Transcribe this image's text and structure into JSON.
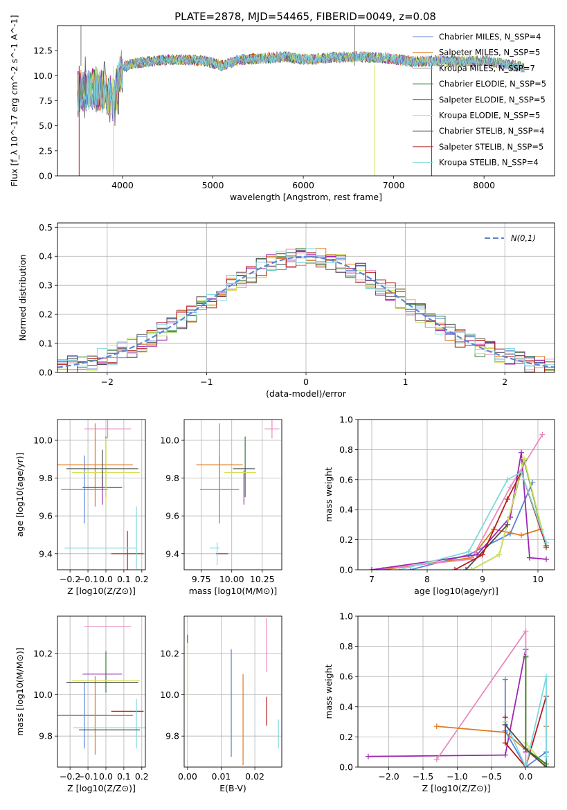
{
  "figure_title": "PLATE=2878, MJD=54465, FIBERID=0049, z=0.08",
  "colors": {
    "chabrier_miles": "#5b84d6",
    "salpeter_miles": "#e07a1f",
    "kroupa_miles": "#9aa3a8",
    "chabrier_elodie": "#2e7d32",
    "salpeter_elodie": "#9c27b0",
    "kroupa_elodie": "#d4e157",
    "chabrier_stelib": "#4d4d4d",
    "salpeter_stelib": "#b71c1c",
    "kroupa_stelib": "#7fd8de",
    "pink": "#e98ac0",
    "normal_curve": "#5b84d6"
  },
  "chart_data": [
    {
      "id": "spectrum",
      "type": "line",
      "xlabel": "wavelength [Angstrom, rest frame]",
      "ylabel": "Flux [f_λ 10^-17 erg cm^-2 s^-1 A^-1]",
      "xlim": [
        3280,
        8780
      ],
      "ylim": [
        0,
        15
      ],
      "xticks": [
        4000,
        5000,
        6000,
        7000,
        8000
      ],
      "yticks": [
        0.0,
        2.5,
        5.0,
        7.5,
        10.0,
        12.5
      ],
      "grid": false,
      "legend_position": "right",
      "series": [
        {
          "name": "Chabrier MILES, N_SSP=4",
          "color_key": "chabrier_miles"
        },
        {
          "name": "Salpeter MILES, N_SSP=5",
          "color_key": "salpeter_miles"
        },
        {
          "name": "Kroupa MILES, N_SSP=7",
          "color_key": "kroupa_miles"
        },
        {
          "name": "Chabrier ELODIE, N_SSP=5",
          "color_key": "chabrier_elodie"
        },
        {
          "name": "Salpeter ELODIE, N_SSP=5",
          "color_key": "salpeter_elodie"
        },
        {
          "name": "Kroupa ELODIE, N_SSP=5",
          "color_key": "kroupa_elodie"
        },
        {
          "name": "Chabrier STELIB, N_SSP=4",
          "color_key": "chabrier_stelib"
        },
        {
          "name": "Salpeter STELIB, N_SSP=5",
          "color_key": "salpeter_stelib"
        },
        {
          "name": "Kroupa STELIB, N_SSP=4",
          "color_key": "kroupa_stelib"
        }
      ],
      "data_envelope": {
        "x": [
          3500,
          3600,
          3700,
          3800,
          3900,
          4000,
          4100,
          4200,
          4300,
          4500,
          4700,
          4900,
          5100,
          5300,
          5500,
          5800,
          6000,
          6300,
          6600,
          6900,
          7200,
          7500,
          7800,
          8000,
          8200,
          8450
        ],
        "y": [
          8.3,
          8.6,
          8.8,
          8.4,
          7.6,
          10.8,
          11.2,
          11.3,
          11.4,
          11.6,
          11.6,
          11.5,
          11.0,
          11.6,
          11.7,
          11.9,
          11.6,
          11.8,
          11.9,
          11.8,
          11.4,
          11.5,
          11.4,
          11.5,
          11.2,
          10.8
        ]
      },
      "annotations": {
        "deep_dips_x": [
          3520,
          3900,
          6790,
          7420
        ],
        "spike_x": [
          3540,
          6570
        ]
      }
    },
    {
      "id": "residuals",
      "type": "histogram",
      "xlabel": "(data-model)/error",
      "ylabel": "Normed distribution",
      "xlim": [
        -2.5,
        2.5
      ],
      "ylim": [
        0,
        0.515
      ],
      "xticks": [
        -2,
        -1,
        0,
        1,
        2
      ],
      "yticks": [
        0.0,
        0.1,
        0.2,
        0.3,
        0.4,
        0.5
      ],
      "grid": true,
      "legend_position": "top-right",
      "legend": "N(0,1)",
      "bin_width": 0.1,
      "reference_curve": "normal pdf, mean 0, sigma 1"
    },
    {
      "id": "age_vs_Z",
      "type": "errorbar",
      "xlabel": "Z [log10(Z/Z⊙)]",
      "ylabel": "age  [log10(age/yr)]",
      "xlim": [
        -0.27,
        0.22
      ],
      "ylim": [
        9.315,
        10.11
      ],
      "xticks": [
        -0.2,
        -0.1,
        0.0,
        0.1,
        0.2
      ],
      "yticks": [
        9.4,
        9.6,
        9.8,
        10.0
      ],
      "grid": true,
      "points": [
        {
          "c": "chabrier_miles",
          "x": -0.12,
          "xerr": 0.13,
          "y": 9.74,
          "yerr": 0.18
        },
        {
          "c": "salpeter_miles",
          "x": -0.06,
          "xerr": 0.21,
          "y": 9.87,
          "yerr": 0.22
        },
        {
          "c": "pink",
          "x": 0.01,
          "xerr": 0.13,
          "y": 10.06,
          "yerr": 0.05
        },
        {
          "c": "chabrier_elodie",
          "x": 0.0,
          "xerr": 0.0,
          "y": 9.86,
          "yerr": 0.16
        },
        {
          "c": "salpeter_elodie",
          "x": -0.02,
          "xerr": 0.11,
          "y": 9.75,
          "yerr": 0.09
        },
        {
          "c": "kroupa_elodie",
          "x": 0.0,
          "xerr": 0.19,
          "y": 9.83,
          "yerr": 0.18
        },
        {
          "c": "chabrier_stelib",
          "x": -0.02,
          "xerr": 0.2,
          "y": 9.85,
          "yerr": 0.1
        },
        {
          "c": "salpeter_stelib",
          "x": 0.12,
          "xerr": 0.09,
          "y": 9.4,
          "yerr": 0.12
        },
        {
          "c": "kroupa_stelib",
          "x": 0.17,
          "xerr": 0.0,
          "y": 9.43,
          "yerr": 0.22
        },
        {
          "c": "kroupa_stelib",
          "x": -0.03,
          "xerr": 0.2,
          "y": 9.43,
          "yerr": 0.0
        }
      ]
    },
    {
      "id": "age_vs_mass",
      "type": "errorbar",
      "xlabel": "mass [log10(M/M⊙)]",
      "ylabel": "",
      "xlim": [
        9.61,
        10.41
      ],
      "ylim": [
        9.315,
        10.11
      ],
      "xticks": [
        9.75,
        10.0,
        10.25
      ],
      "yticks": [
        9.4,
        9.6,
        9.8,
        10.0
      ],
      "grid": true,
      "points": [
        {
          "c": "chabrier_miles",
          "x": 9.9,
          "xerr": 0.16,
          "y": 9.74,
          "yerr": 0.18
        },
        {
          "c": "salpeter_miles",
          "x": 9.9,
          "xerr": 0.19,
          "y": 9.87,
          "yerr": 0.22
        },
        {
          "c": "pink",
          "x": 10.33,
          "xerr": 0.06,
          "y": 10.06,
          "yerr": 0.05
        },
        {
          "c": "chabrier_elodie",
          "x": 10.11,
          "xerr": 0.0,
          "y": 9.86,
          "yerr": 0.16
        },
        {
          "c": "salpeter_elodie",
          "x": 10.1,
          "xerr": 0.0,
          "y": 9.75,
          "yerr": 0.09
        },
        {
          "c": "kroupa_elodie",
          "x": 10.07,
          "xerr": 0.13,
          "y": 9.83,
          "yerr": 0.0
        },
        {
          "c": "chabrier_stelib",
          "x": 10.1,
          "xerr": 0.09,
          "y": 9.85,
          "yerr": 0.0
        },
        {
          "c": "salpeter_stelib",
          "x": 9.92,
          "xerr": 0.05,
          "y": 9.4,
          "yerr": 0.0
        },
        {
          "c": "kroupa_stelib",
          "x": 9.86,
          "xerr": 0.04,
          "y": 9.43,
          "yerr": 0.0
        },
        {
          "c": "kroupa_stelib",
          "x": 9.88,
          "xerr": 0.0,
          "y": 9.4,
          "yerr": 0.06
        }
      ]
    },
    {
      "id": "weight_vs_age",
      "type": "line",
      "xlabel": "age  [log10(age/yr)]",
      "ylabel": "mass weight",
      "xlim": [
        6.75,
        10.3
      ],
      "ylim": [
        0,
        1
      ],
      "xticks": [
        7,
        8,
        9,
        10
      ],
      "yticks": [
        0.0,
        0.2,
        0.4,
        0.6,
        0.8,
        1.0
      ],
      "grid": true,
      "series": [
        {
          "c": "chabrier_miles",
          "x": [
            7.7,
            8.75,
            9.5,
            9.9
          ],
          "y": [
            0.0,
            0.1,
            0.24,
            0.58
          ]
        },
        {
          "c": "salpeter_miles",
          "x": [
            7.2,
            8.8,
            9.2,
            9.7,
            10.05
          ],
          "y": [
            0.0,
            0.08,
            0.27,
            0.23,
            0.27
          ]
        },
        {
          "c": "pink",
          "x": [
            7.0,
            8.8,
            9.5,
            10.08
          ],
          "y": [
            0.0,
            0.07,
            0.55,
            0.9
          ]
        },
        {
          "c": "chabrier_elodie",
          "x": [
            8.8,
            9.3,
            9.75,
            10.15
          ],
          "y": [
            0.0,
            0.1,
            0.73,
            0.15
          ]
        },
        {
          "c": "salpeter_elodie",
          "x": [
            7.0,
            8.9,
            9.5,
            9.7,
            9.85,
            10.15
          ],
          "y": [
            0.0,
            0.1,
            0.35,
            0.78,
            0.08,
            0.07
          ]
        },
        {
          "c": "kroupa_elodie",
          "x": [
            8.8,
            9.3,
            9.75,
            10.15
          ],
          "y": [
            0.0,
            0.1,
            0.74,
            0.16
          ]
        },
        {
          "c": "chabrier_stelib",
          "x": [
            8.7,
            9.45
          ],
          "y": [
            0.0,
            0.3
          ]
        },
        {
          "c": "salpeter_stelib",
          "x": [
            8.5,
            9.0,
            9.45,
            9.7,
            10.15
          ],
          "y": [
            0.0,
            0.1,
            0.47,
            0.65,
            0.16
          ]
        },
        {
          "c": "kroupa_stelib",
          "x": [
            7.5,
            8.75,
            9.45,
            9.7,
            10.15
          ],
          "y": [
            0.0,
            0.12,
            0.6,
            0.65,
            0.18
          ]
        }
      ]
    },
    {
      "id": "mass_vs_Z",
      "type": "errorbar",
      "xlabel": "Z [log10(Z/Z⊙)]",
      "ylabel": "mass [log10(M/M⊙)]",
      "xlim": [
        -0.27,
        0.22
      ],
      "ylim": [
        9.65,
        10.38
      ],
      "xticks": [
        -0.2,
        -0.1,
        0.0,
        0.1,
        0.2
      ],
      "yticks": [
        9.8,
        10.0,
        10.2
      ],
      "grid": true,
      "points": [
        {
          "c": "chabrier_miles",
          "x": -0.12,
          "xerr": 0.13,
          "y": 9.9,
          "yerr": 0.16
        },
        {
          "c": "salpeter_miles",
          "x": -0.06,
          "xerr": 0.21,
          "y": 9.9,
          "yerr": 0.19
        },
        {
          "c": "pink",
          "x": 0.01,
          "xerr": 0.13,
          "y": 10.33,
          "yerr": 0.0
        },
        {
          "c": "chabrier_elodie",
          "x": 0.0,
          "xerr": 0.0,
          "y": 10.11,
          "yerr": 0.1
        },
        {
          "c": "salpeter_elodie",
          "x": -0.02,
          "xerr": 0.11,
          "y": 10.1,
          "yerr": 0.0
        },
        {
          "c": "kroupa_elodie",
          "x": 0.0,
          "xerr": 0.19,
          "y": 10.07,
          "yerr": 0.0
        },
        {
          "c": "chabrier_stelib",
          "x": -0.02,
          "xerr": 0.2,
          "y": 10.06,
          "yerr": 0.0
        },
        {
          "c": "salpeter_stelib",
          "x": 0.12,
          "xerr": 0.09,
          "y": 9.92,
          "yerr": 0.0
        },
        {
          "c": "kroupa_stelib",
          "x": 0.17,
          "xerr": 0.0,
          "y": 9.86,
          "yerr": 0.12
        },
        {
          "c": "kroupa_stelib",
          "x": 0.02,
          "xerr": 0.2,
          "y": 9.84,
          "yerr": 0.0
        },
        {
          "c": "chabrier_stelib",
          "x": 0.02,
          "xerr": 0.17,
          "y": 9.83,
          "yerr": 0.0
        }
      ]
    },
    {
      "id": "mass_vs_ebv",
      "type": "errorbar",
      "xlabel": "E(B-V)",
      "ylabel": "",
      "xlim": [
        -0.001,
        0.028
      ],
      "ylim": [
        9.65,
        10.38
      ],
      "xticks": [
        0.0,
        0.01,
        0.02
      ],
      "yticks": [
        9.8,
        10.0,
        10.2
      ],
      "grid": true,
      "points": [
        {
          "c": "kroupa_elodie",
          "x": 0.0,
          "xerr": 0.0,
          "y": 10.11,
          "yerr": 0.15
        },
        {
          "c": "chabrier_elodie",
          "x": 0.0,
          "xerr": 0.0,
          "y": 10.27,
          "yerr": 0.02
        },
        {
          "c": "chabrier_miles",
          "x": 0.013,
          "xerr": 0.0,
          "y": 9.96,
          "yerr": 0.26
        },
        {
          "c": "salpeter_miles",
          "x": 0.0165,
          "xerr": 0.0,
          "y": 9.88,
          "yerr": 0.22
        },
        {
          "c": "salpeter_stelib",
          "x": 0.0235,
          "xerr": 0.0,
          "y": 9.92,
          "yerr": 0.07
        },
        {
          "c": "pink",
          "x": 0.0235,
          "xerr": 0.0,
          "y": 10.24,
          "yerr": 0.13
        },
        {
          "c": "kroupa_stelib",
          "x": 0.027,
          "xerr": 0.0,
          "y": 9.81,
          "yerr": 0.07
        }
      ]
    },
    {
      "id": "weight_vs_Z",
      "type": "line",
      "xlabel": "Z [log10(Z/Z⊙)]",
      "ylabel": "mass weight",
      "xlim": [
        -2.45,
        0.42
      ],
      "ylim": [
        0,
        1
      ],
      "xticks": [
        -2.0,
        -1.5,
        -1.0,
        -0.5,
        0.0
      ],
      "yticks": [
        0.0,
        0.2,
        0.4,
        0.6,
        0.8,
        1.0
      ],
      "grid": true,
      "series": [
        {
          "c": "salpeter_elodie",
          "x": [
            -2.3,
            -0.3,
            0.0,
            0.0
          ],
          "y": [
            0.07,
            0.08,
            0.78,
            0.1
          ]
        },
        {
          "c": "pink",
          "x": [
            -1.3,
            0.0,
            0.0
          ],
          "y": [
            0.05,
            0.9,
            0.0
          ]
        },
        {
          "c": "salpeter_miles",
          "x": [
            -1.3,
            -0.3,
            0.3,
            0.3
          ],
          "y": [
            0.27,
            0.23,
            0.0,
            0.27
          ]
        },
        {
          "c": "chabrier_miles",
          "x": [
            -0.3,
            -0.3,
            0.0,
            0.3,
            0.3
          ],
          "y": [
            0.58,
            0.24,
            0.0,
            0.1,
            0.0
          ]
        },
        {
          "c": "salpeter_stelib",
          "x": [
            -0.3,
            -0.3,
            0.0,
            0.3
          ],
          "y": [
            0.33,
            0.16,
            0.0,
            0.47
          ]
        },
        {
          "c": "kroupa_elodie",
          "x": [
            0.0,
            0.0,
            0.3
          ],
          "y": [
            0.74,
            0.16,
            0.0
          ]
        },
        {
          "c": "chabrier_elodie",
          "x": [
            0.0,
            0.0,
            0.3
          ],
          "y": [
            0.73,
            0.12,
            0.02
          ]
        },
        {
          "c": "kroupa_stelib",
          "x": [
            -0.3,
            0.0,
            0.3,
            0.3
          ],
          "y": [
            0.3,
            0.0,
            0.6,
            0.07
          ]
        },
        {
          "c": "chabrier_stelib",
          "x": [
            -0.3,
            0.0,
            0.3
          ],
          "y": [
            0.28,
            0.12,
            0.0
          ]
        }
      ]
    }
  ]
}
